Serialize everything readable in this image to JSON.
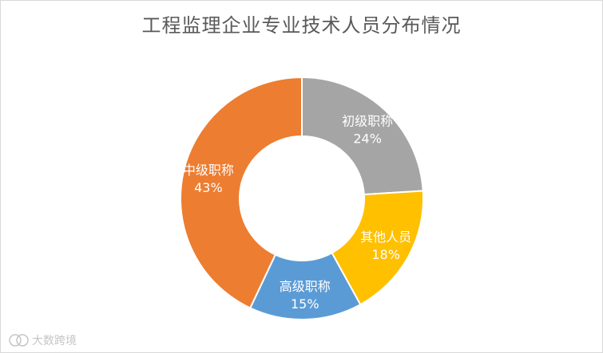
{
  "chart_data": {
    "type": "pie",
    "variant": "donut",
    "title": "工程监理企业专业技术人员分布情况",
    "categories": [
      "初级职称",
      "其他人员",
      "高级职称",
      "中级职称"
    ],
    "values": [
      24,
      18,
      15,
      43
    ],
    "value_unit": "%",
    "value_labels": [
      "24%",
      "18%",
      "15%",
      "43%"
    ],
    "colors": [
      "#a5a5a5",
      "#ffc000",
      "#5b9bd5",
      "#ed7d31"
    ],
    "legend": "none",
    "data_labels": "inside"
  },
  "watermark": {
    "text": "大数跨境"
  }
}
